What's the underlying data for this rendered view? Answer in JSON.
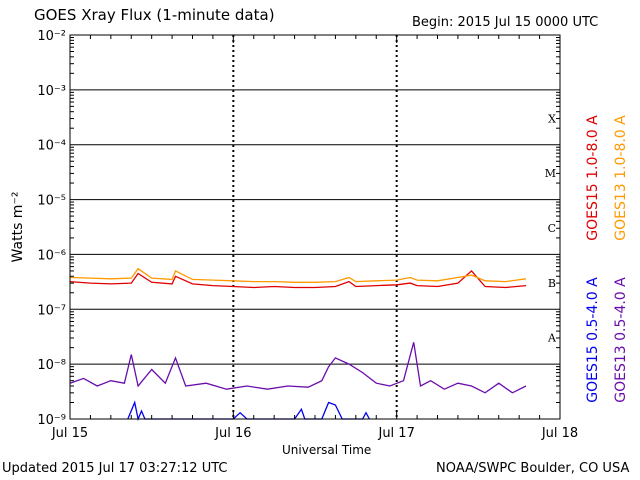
{
  "header": {
    "title": "GOES Xray Flux (1-minute data)",
    "begin": "Begin:  2015 Jul 15 0000 UTC"
  },
  "footer": {
    "updated": "Updated 2015 Jul 17 03:27:12 UTC",
    "credit": "NOAA/SWPC Boulder, CO USA"
  },
  "colors": {
    "goes15_long": "#e00000",
    "goes13_long": "#ff9900",
    "goes15_short": "#0000ee",
    "goes13_short": "#6a0dad",
    "frame": "#000000"
  },
  "chart_data": {
    "type": "line",
    "title": "GOES Xray Flux (1-minute data)",
    "xlabel": "Universal Time",
    "ylabel": "Watts m⁻²",
    "yscale": "log",
    "ylim": [
      1e-09,
      0.01
    ],
    "y_ticks": [
      {
        "value": 0.01,
        "label": "10⁻²"
      },
      {
        "value": 0.001,
        "label": "10⁻³"
      },
      {
        "value": 0.0001,
        "label": "10⁻⁴"
      },
      {
        "value": 1e-05,
        "label": "10⁻⁵"
      },
      {
        "value": 1e-06,
        "label": "10⁻⁶"
      },
      {
        "value": 1e-07,
        "label": "10⁻⁷"
      },
      {
        "value": 1e-08,
        "label": "10⁻⁸"
      },
      {
        "value": 1e-09,
        "label": "10⁻⁹"
      }
    ],
    "x_ticks": [
      "Jul 15",
      "Jul 16",
      "Jul 17",
      "Jul 18"
    ],
    "xlim": [
      "2015-07-15 00:00",
      "2015-07-18 00:00"
    ],
    "flare_classes": [
      {
        "label": "X",
        "value": 0.0001
      },
      {
        "label": "M",
        "value": 1e-05
      },
      {
        "label": "C",
        "value": 1e-06
      },
      {
        "label": "B",
        "value": 1e-07
      },
      {
        "label": "A",
        "value": 1e-08
      }
    ],
    "grid": "horizontal at each decade; dashed vertical at day boundaries",
    "legend_position": "right, rotated",
    "series": [
      {
        "name": "GOES15 1.0-8.0 A",
        "color": "#e00000",
        "points": [
          [
            "2015-07-15 00:00",
            3.2e-07
          ],
          [
            "2015-07-15 03:00",
            3e-07
          ],
          [
            "2015-07-15 06:00",
            2.9e-07
          ],
          [
            "2015-07-15 09:00",
            3e-07
          ],
          [
            "2015-07-15 10:00",
            4.5e-07
          ],
          [
            "2015-07-15 12:00",
            3.1e-07
          ],
          [
            "2015-07-15 15:00",
            2.9e-07
          ],
          [
            "2015-07-15 15:30",
            4e-07
          ],
          [
            "2015-07-15 18:00",
            2.9e-07
          ],
          [
            "2015-07-15 21:00",
            2.7e-07
          ],
          [
            "2015-07-16 00:00",
            2.6e-07
          ],
          [
            "2015-07-16 03:00",
            2.5e-07
          ],
          [
            "2015-07-16 06:00",
            2.6e-07
          ],
          [
            "2015-07-16 09:00",
            2.5e-07
          ],
          [
            "2015-07-16 12:00",
            2.5e-07
          ],
          [
            "2015-07-16 15:00",
            2.6e-07
          ],
          [
            "2015-07-16 17:00",
            3.2e-07
          ],
          [
            "2015-07-16 18:00",
            2.6e-07
          ],
          [
            "2015-07-16 21:00",
            2.7e-07
          ],
          [
            "2015-07-17 00:00",
            2.8e-07
          ],
          [
            "2015-07-17 02:00",
            3e-07
          ],
          [
            "2015-07-17 03:00",
            2.7e-07
          ],
          [
            "2015-07-17 06:00",
            2.6e-07
          ],
          [
            "2015-07-17 09:00",
            3e-07
          ],
          [
            "2015-07-17 11:00",
            5e-07
          ],
          [
            "2015-07-17 13:00",
            2.6e-07
          ],
          [
            "2015-07-17 16:00",
            2.5e-07
          ],
          [
            "2015-07-17 19:00",
            2.7e-07
          ]
        ]
      },
      {
        "name": "GOES13 1.0-8.0 A",
        "color": "#ff9900",
        "points": [
          [
            "2015-07-15 00:00",
            3.8e-07
          ],
          [
            "2015-07-15 03:00",
            3.7e-07
          ],
          [
            "2015-07-15 06:00",
            3.6e-07
          ],
          [
            "2015-07-15 09:00",
            3.7e-07
          ],
          [
            "2015-07-15 10:00",
            5.5e-07
          ],
          [
            "2015-07-15 12:00",
            3.7e-07
          ],
          [
            "2015-07-15 15:00",
            3.5e-07
          ],
          [
            "2015-07-15 15:30",
            5e-07
          ],
          [
            "2015-07-15 18:00",
            3.5e-07
          ],
          [
            "2015-07-15 21:00",
            3.4e-07
          ],
          [
            "2015-07-16 00:00",
            3.3e-07
          ],
          [
            "2015-07-16 03:00",
            3.2e-07
          ],
          [
            "2015-07-16 06:00",
            3.2e-07
          ],
          [
            "2015-07-16 09:00",
            3.1e-07
          ],
          [
            "2015-07-16 12:00",
            3.1e-07
          ],
          [
            "2015-07-16 15:00",
            3.2e-07
          ],
          [
            "2015-07-16 17:00",
            3.8e-07
          ],
          [
            "2015-07-16 18:00",
            3.2e-07
          ],
          [
            "2015-07-16 21:00",
            3.3e-07
          ],
          [
            "2015-07-17 00:00",
            3.4e-07
          ],
          [
            "2015-07-17 02:00",
            3.8e-07
          ],
          [
            "2015-07-17 03:00",
            3.4e-07
          ],
          [
            "2015-07-17 06:00",
            3.3e-07
          ],
          [
            "2015-07-17 09:00",
            3.8e-07
          ],
          [
            "2015-07-17 11:00",
            4.2e-07
          ],
          [
            "2015-07-17 13:00",
            3.3e-07
          ],
          [
            "2015-07-17 16:00",
            3.2e-07
          ],
          [
            "2015-07-17 19:00",
            3.6e-07
          ]
        ]
      },
      {
        "name": "GOES15 0.5-4.0 A",
        "color": "#0000ee",
        "points": [
          [
            "2015-07-15 08:30",
            1e-09
          ],
          [
            "2015-07-15 09:30",
            2e-09
          ],
          [
            "2015-07-15 10:00",
            1e-09
          ],
          [
            "2015-07-15 10:30",
            1.4e-09
          ],
          [
            "2015-07-15 11:00",
            1e-09
          ],
          [
            "2015-07-16 00:00",
            1e-09
          ],
          [
            "2015-07-16 01:00",
            1.3e-09
          ],
          [
            "2015-07-16 02:00",
            1e-09
          ],
          [
            "2015-07-16 09:00",
            1e-09
          ],
          [
            "2015-07-16 10:00",
            1.5e-09
          ],
          [
            "2015-07-16 10:30",
            1e-09
          ],
          [
            "2015-07-16 13:00",
            1e-09
          ],
          [
            "2015-07-16 14:00",
            2e-09
          ],
          [
            "2015-07-16 15:00",
            1.8e-09
          ],
          [
            "2015-07-16 16:00",
            1e-09
          ],
          [
            "2015-07-16 19:00",
            1e-09
          ],
          [
            "2015-07-16 19:30",
            1.3e-09
          ],
          [
            "2015-07-16 20:00",
            1e-09
          ]
        ]
      },
      {
        "name": "GOES13 0.5-4.0 A",
        "color": "#6a0dad",
        "points": [
          [
            "2015-07-15 00:00",
            4.5e-09
          ],
          [
            "2015-07-15 02:00",
            5.5e-09
          ],
          [
            "2015-07-15 04:00",
            4e-09
          ],
          [
            "2015-07-15 06:00",
            5e-09
          ],
          [
            "2015-07-15 08:00",
            4.5e-09
          ],
          [
            "2015-07-15 09:00",
            1.5e-08
          ],
          [
            "2015-07-15 10:00",
            4e-09
          ],
          [
            "2015-07-15 12:00",
            8e-09
          ],
          [
            "2015-07-15 14:00",
            4.5e-09
          ],
          [
            "2015-07-15 15:30",
            1.3e-08
          ],
          [
            "2015-07-15 17:00",
            4e-09
          ],
          [
            "2015-07-15 20:00",
            4.5e-09
          ],
          [
            "2015-07-15 23:00",
            3.5e-09
          ],
          [
            "2015-07-16 02:00",
            4e-09
          ],
          [
            "2015-07-16 05:00",
            3.5e-09
          ],
          [
            "2015-07-16 08:00",
            4e-09
          ],
          [
            "2015-07-16 11:00",
            3.8e-09
          ],
          [
            "2015-07-16 13:00",
            5e-09
          ],
          [
            "2015-07-16 14:00",
            9e-09
          ],
          [
            "2015-07-16 15:00",
            1.3e-08
          ],
          [
            "2015-07-16 17:00",
            1e-08
          ],
          [
            "2015-07-16 19:00",
            7e-09
          ],
          [
            "2015-07-16 21:00",
            4.5e-09
          ],
          [
            "2015-07-16 23:00",
            4e-09
          ],
          [
            "2015-07-17 01:00",
            5e-09
          ],
          [
            "2015-07-17 02:30",
            2.5e-08
          ],
          [
            "2015-07-17 03:30",
            4e-09
          ],
          [
            "2015-07-17 05:00",
            5e-09
          ],
          [
            "2015-07-17 07:00",
            3.5e-09
          ],
          [
            "2015-07-17 09:00",
            4.5e-09
          ],
          [
            "2015-07-17 11:00",
            4e-09
          ],
          [
            "2015-07-17 13:00",
            3e-09
          ],
          [
            "2015-07-17 15:00",
            4.5e-09
          ],
          [
            "2015-07-17 17:00",
            3e-09
          ],
          [
            "2015-07-17 19:00",
            4e-09
          ]
        ]
      }
    ]
  }
}
